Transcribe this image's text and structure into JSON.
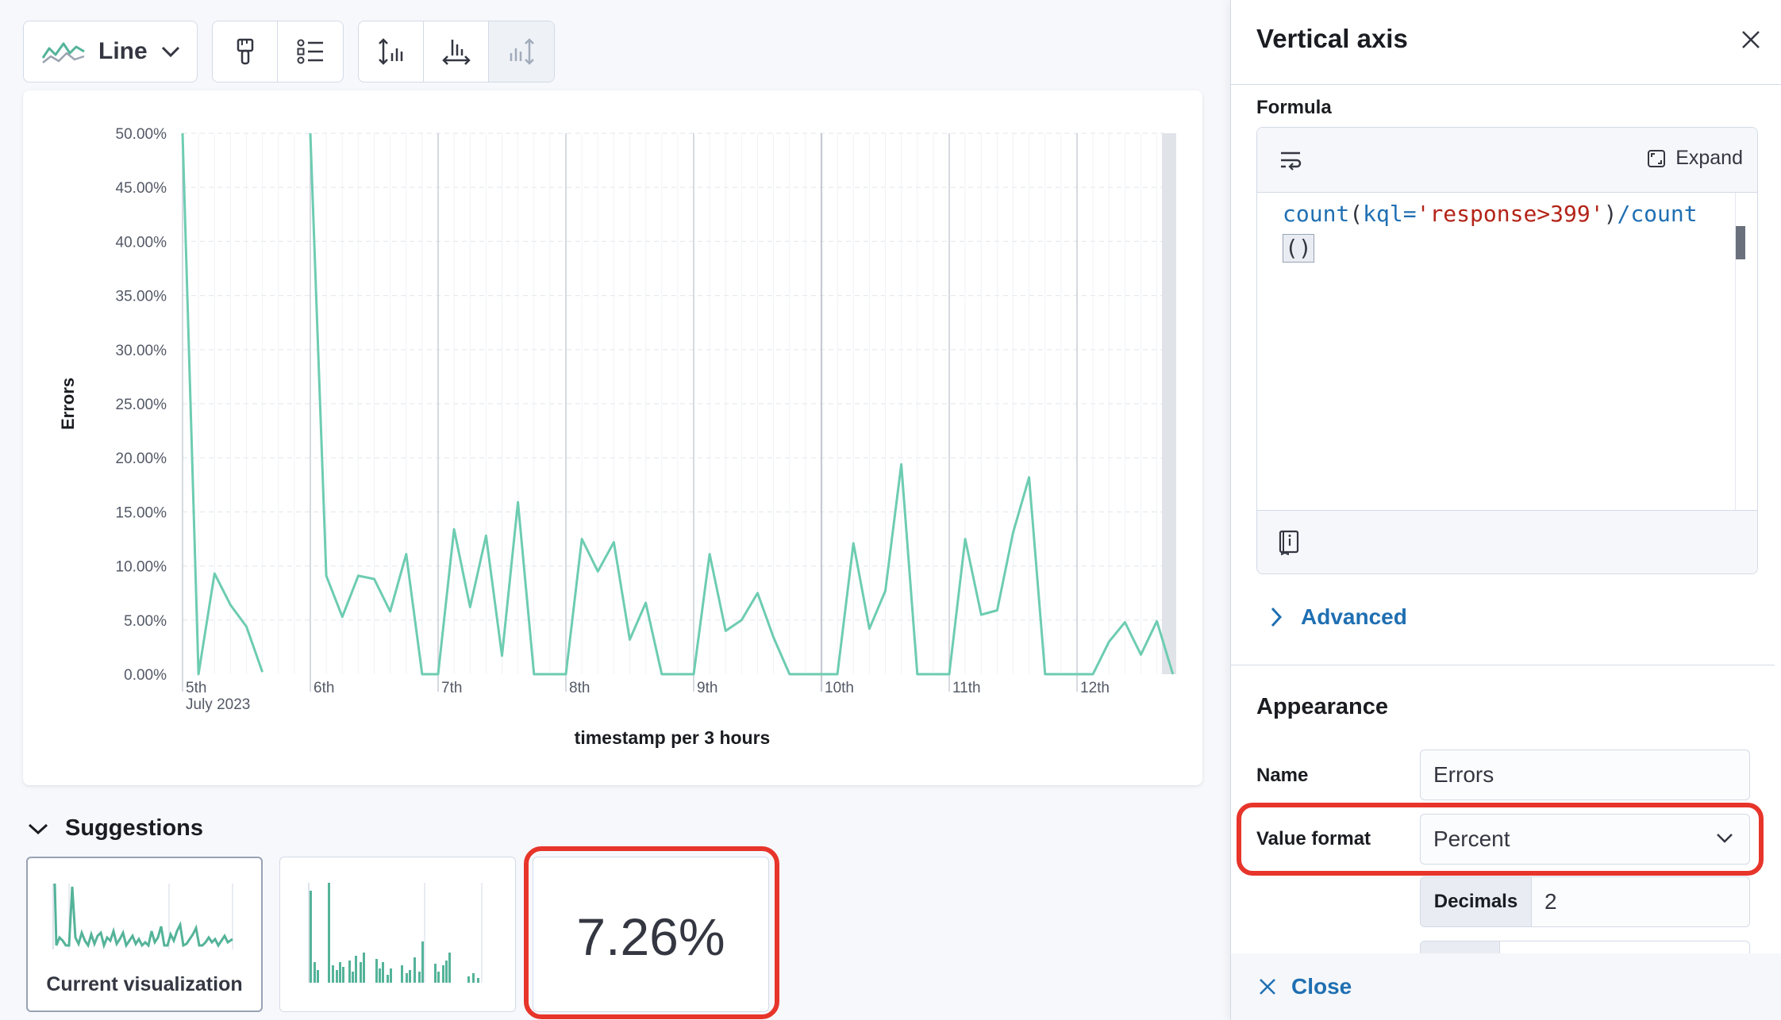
{
  "toolbar": {
    "chart_type_label": "Line",
    "buttons": [
      "paintbrush-icon",
      "legend-icon",
      "left-axis-icon",
      "bottom-axis-icon",
      "right-axis-icon"
    ]
  },
  "colors": {
    "series": "#6dccb1",
    "accent": "#1f6fb2",
    "highlight": "#e7352b"
  },
  "chart_data": {
    "type": "line",
    "ylabel": "Errors",
    "xlabel": "timestamp per 3 hours",
    "ylim": [
      0,
      50
    ],
    "yticks": [
      "50.00%",
      "45.00%",
      "40.00%",
      "35.00%",
      "30.00%",
      "25.00%",
      "20.00%",
      "15.00%",
      "10.00%",
      "5.00%",
      "0.00%"
    ],
    "xticks": [
      "5th",
      "6th",
      "7th",
      "8th",
      "9th",
      "10th",
      "11th",
      "12th"
    ],
    "xtick_sublabel": "July 2023",
    "x_unit": "3-hour intervals from 5th 00:00",
    "series": [
      {
        "segments": [
          [
            [
              0,
              50
            ],
            [
              1,
              0
            ],
            [
              2,
              9.3
            ],
            [
              3,
              6.4
            ],
            [
              4,
              4.4
            ],
            [
              5,
              0.2
            ]
          ],
          [
            [
              8,
              50
            ],
            [
              9,
              9.1
            ],
            [
              10,
              5.3
            ],
            [
              11,
              9.1
            ],
            [
              12,
              8.8
            ],
            [
              13,
              5.8
            ],
            [
              14,
              11.1
            ],
            [
              15,
              0
            ],
            [
              16,
              0
            ],
            [
              17,
              13.4
            ],
            [
              18,
              6.2
            ],
            [
              19,
              12.8
            ],
            [
              20,
              1.7
            ],
            [
              21,
              15.9
            ],
            [
              22,
              0
            ],
            [
              23,
              0
            ],
            [
              24,
              0
            ],
            [
              25,
              12.5
            ],
            [
              26,
              9.5
            ],
            [
              27,
              12.2
            ],
            [
              28,
              3.2
            ],
            [
              29,
              6.6
            ],
            [
              30,
              0
            ],
            [
              31,
              0
            ],
            [
              32,
              0
            ],
            [
              33,
              11.1
            ],
            [
              34,
              4.0
            ],
            [
              35,
              5.0
            ],
            [
              36,
              7.5
            ],
            [
              37,
              3.4
            ],
            [
              38,
              0
            ],
            [
              39,
              0
            ],
            [
              40,
              0
            ],
            [
              41,
              0
            ],
            [
              42,
              12.1
            ],
            [
              43,
              4.2
            ],
            [
              44,
              7.7
            ],
            [
              45,
              19.4
            ],
            [
              46,
              0
            ],
            [
              47,
              0
            ],
            [
              48,
              0
            ],
            [
              49,
              12.5
            ],
            [
              50,
              5.5
            ],
            [
              51,
              5.9
            ],
            [
              52,
              13.1
            ],
            [
              53,
              18.2
            ],
            [
              54,
              0
            ],
            [
              55,
              0
            ],
            [
              56,
              0
            ],
            [
              57,
              0
            ],
            [
              58,
              3.0
            ],
            [
              59,
              4.8
            ],
            [
              60,
              1.8
            ],
            [
              61,
              4.9
            ],
            [
              62,
              0
            ]
          ]
        ]
      }
    ]
  },
  "suggestions": {
    "title": "Suggestions",
    "current_caption": "Current visualization",
    "metric_value": "7.26%"
  },
  "flyout": {
    "title": "Vertical axis",
    "formula_label": "Formula",
    "expand_label": "Expand",
    "formula": {
      "p1": "count",
      "p2": "(",
      "p3": "kql=",
      "p4": "'response>399'",
      "p5": ")",
      "p6": "/count",
      "p7": "()"
    },
    "advanced_label": "Advanced",
    "appearance_label": "Appearance",
    "name_label": "Name",
    "name_value": "Errors",
    "value_format_label": "Value format",
    "value_format_value": "Percent",
    "decimals_label": "Decimals",
    "decimals_value": "2",
    "close_label": "Close"
  }
}
